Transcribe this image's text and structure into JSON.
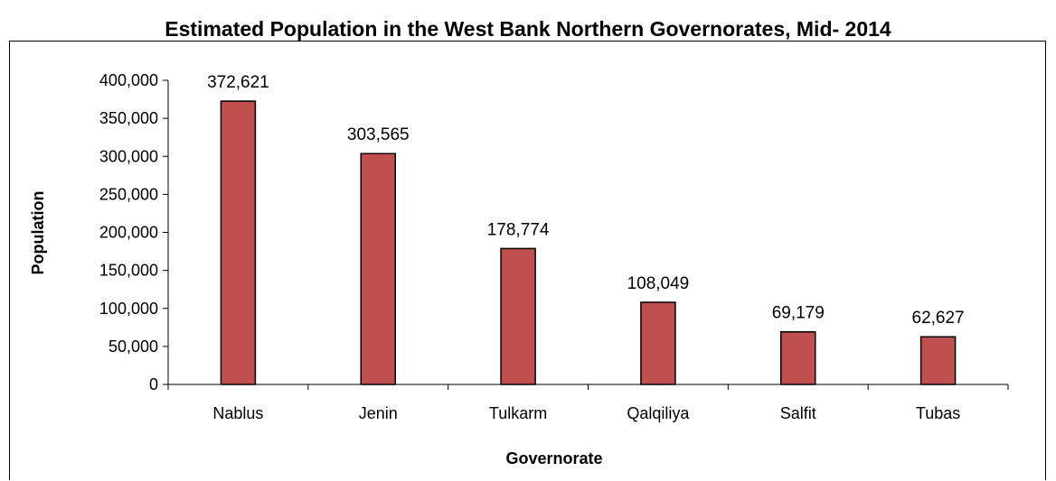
{
  "chart_data": {
    "type": "bar",
    "title": "Estimated Population in the West Bank Northern Governorates, Mid- 2014",
    "xlabel": "Governorate",
    "ylabel": "Population",
    "categories": [
      "Nablus",
      "Jenin",
      "Tulkarm",
      "Qalqiliya",
      "Salfit",
      "Tubas"
    ],
    "values": [
      372621,
      303565,
      178774,
      108049,
      69179,
      62627
    ],
    "data_labels": [
      "372,621",
      "303,565",
      "178,774",
      "108,049",
      "69,179",
      "62,627"
    ],
    "ylim": [
      0,
      400000
    ],
    "yticks": [
      0,
      50000,
      100000,
      150000,
      200000,
      250000,
      300000,
      350000,
      400000
    ],
    "ytick_labels": [
      "0",
      "50,000",
      "100,000",
      "150,000",
      "200,000",
      "250,000",
      "300,000",
      "350,000",
      "400,000"
    ],
    "bar_color": "#c0504d",
    "bar_edge_color": "#000000",
    "grid": false,
    "legend": "none"
  }
}
